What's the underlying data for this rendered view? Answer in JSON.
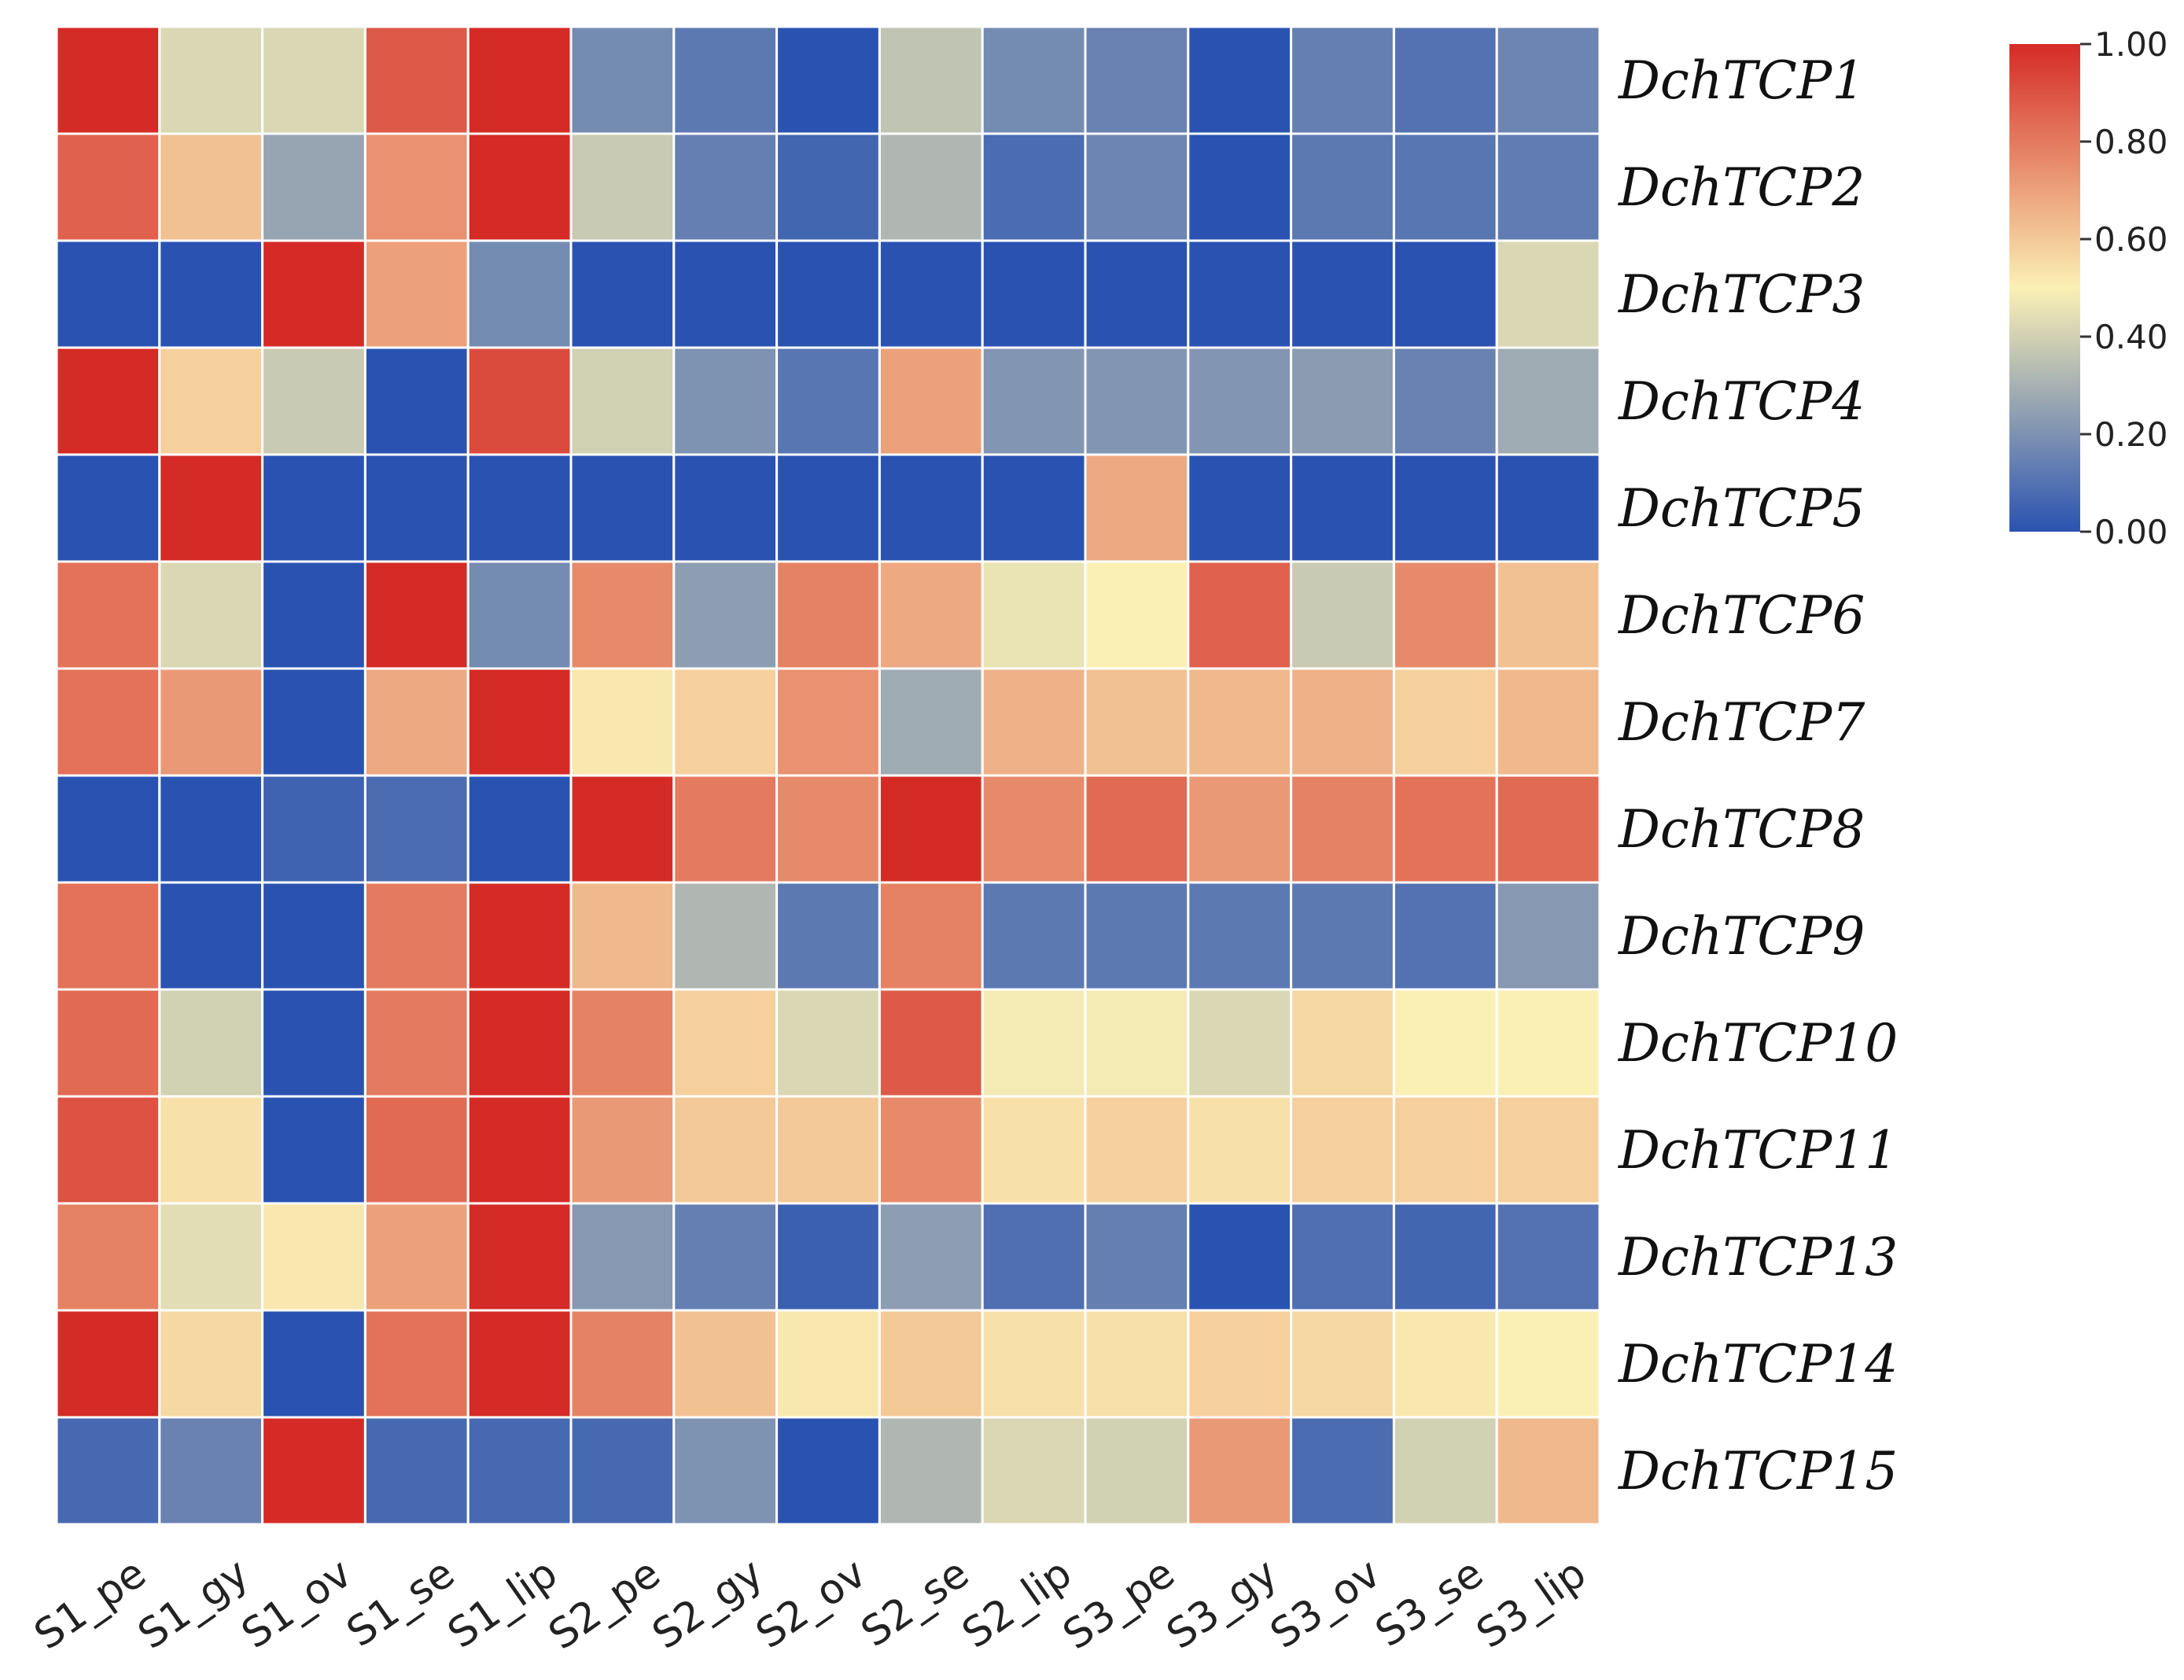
{
  "chart_data": {
    "type": "heatmap",
    "rows": [
      "DchTCP1",
      "DchTCP2",
      "DchTCP3",
      "DchTCP4",
      "DchTCP5",
      "DchTCP6",
      "DchTCP7",
      "DchTCP8",
      "DchTCP9",
      "DchTCP10",
      "DchTCP11",
      "DchTCP13",
      "DchTCP14",
      "DchTCP15"
    ],
    "columns": [
      "S1_pe",
      "S1_gy",
      "S1_ov",
      "S1_se",
      "S1_lip",
      "S2_pe",
      "S2_gy",
      "S2_ov",
      "S2_se",
      "S2_lip",
      "S3_pe",
      "S3_gy",
      "S3_ov",
      "S3_se",
      "S3_lip"
    ],
    "values": [
      [
        1.0,
        0.42,
        0.42,
        0.88,
        1.0,
        0.18,
        0.12,
        0.0,
        0.36,
        0.18,
        0.15,
        0.0,
        0.14,
        0.1,
        0.16
      ],
      [
        0.86,
        0.62,
        0.26,
        0.74,
        1.0,
        0.38,
        0.14,
        0.06,
        0.32,
        0.08,
        0.16,
        0.0,
        0.12,
        0.11,
        0.13
      ],
      [
        0.0,
        0.0,
        1.0,
        0.7,
        0.18,
        0.0,
        0.0,
        0.0,
        0.0,
        0.0,
        0.0,
        0.0,
        0.0,
        0.0,
        0.42
      ],
      [
        1.0,
        0.58,
        0.38,
        0.0,
        0.92,
        0.4,
        0.2,
        0.11,
        0.7,
        0.21,
        0.21,
        0.21,
        0.23,
        0.15,
        0.28
      ],
      [
        0.0,
        1.0,
        0.0,
        0.0,
        0.0,
        0.0,
        0.0,
        0.0,
        0.0,
        0.0,
        0.68,
        0.0,
        0.0,
        0.0,
        0.0
      ],
      [
        0.82,
        0.42,
        0.0,
        1.0,
        0.18,
        0.76,
        0.24,
        0.78,
        0.68,
        0.46,
        0.5,
        0.86,
        0.38,
        0.76,
        0.62
      ],
      [
        0.82,
        0.72,
        0.0,
        0.68,
        1.0,
        0.52,
        0.58,
        0.74,
        0.28,
        0.66,
        0.62,
        0.64,
        0.66,
        0.58,
        0.64
      ],
      [
        0.0,
        0.0,
        0.05,
        0.08,
        0.0,
        1.0,
        0.8,
        0.76,
        1.0,
        0.76,
        0.84,
        0.72,
        0.78,
        0.82,
        0.84
      ],
      [
        0.82,
        0.0,
        0.0,
        0.8,
        1.0,
        0.64,
        0.32,
        0.12,
        0.78,
        0.12,
        0.12,
        0.12,
        0.12,
        0.1,
        0.22
      ],
      [
        0.84,
        0.4,
        0.0,
        0.8,
        1.0,
        0.78,
        0.58,
        0.42,
        0.88,
        0.48,
        0.48,
        0.42,
        0.56,
        0.5,
        0.5
      ],
      [
        0.9,
        0.54,
        0.0,
        0.84,
        1.0,
        0.72,
        0.6,
        0.6,
        0.76,
        0.54,
        0.58,
        0.54,
        0.58,
        0.58,
        0.58
      ],
      [
        0.78,
        0.44,
        0.52,
        0.7,
        1.0,
        0.22,
        0.14,
        0.04,
        0.24,
        0.09,
        0.14,
        0.0,
        0.09,
        0.06,
        0.1
      ],
      [
        1.0,
        0.56,
        0.0,
        0.82,
        1.0,
        0.78,
        0.62,
        0.52,
        0.6,
        0.54,
        0.54,
        0.58,
        0.56,
        0.52,
        0.5
      ],
      [
        0.07,
        0.15,
        1.0,
        0.07,
        0.07,
        0.07,
        0.2,
        0.0,
        0.32,
        0.42,
        0.4,
        0.72,
        0.08,
        0.4,
        0.64
      ]
    ],
    "colorbar": {
      "min": 0.0,
      "max": 1.0,
      "ticks": [
        "1.00",
        "0.80",
        "0.60",
        "0.40",
        "0.20",
        "0.00"
      ],
      "colors": [
        "#2a53b1",
        "#fbf0b4",
        "#d52b26"
      ]
    },
    "title": "",
    "xlabel": "",
    "ylabel": ""
  }
}
